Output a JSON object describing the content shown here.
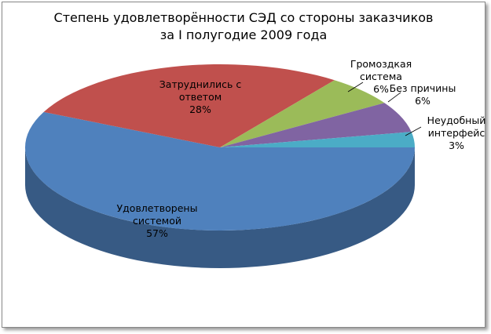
{
  "chart_data": {
    "type": "pie",
    "title": "Степень удовлетворённости СЭД со стороны заказчиков за I полугодие 2009 года",
    "categories": [
      "Удовлетворены системой",
      "Затруднились с ответом",
      "Громоздкая система",
      "Без причины",
      "Неудобный интерфейс"
    ],
    "values": [
      57,
      28,
      6,
      6,
      3
    ],
    "value_labels": [
      "57%",
      "28%",
      "6%",
      "6%",
      "3%"
    ],
    "colors": [
      "#4f81bd",
      "#c0504d",
      "#9bbb59",
      "#8064a2",
      "#4bacc6"
    ]
  }
}
